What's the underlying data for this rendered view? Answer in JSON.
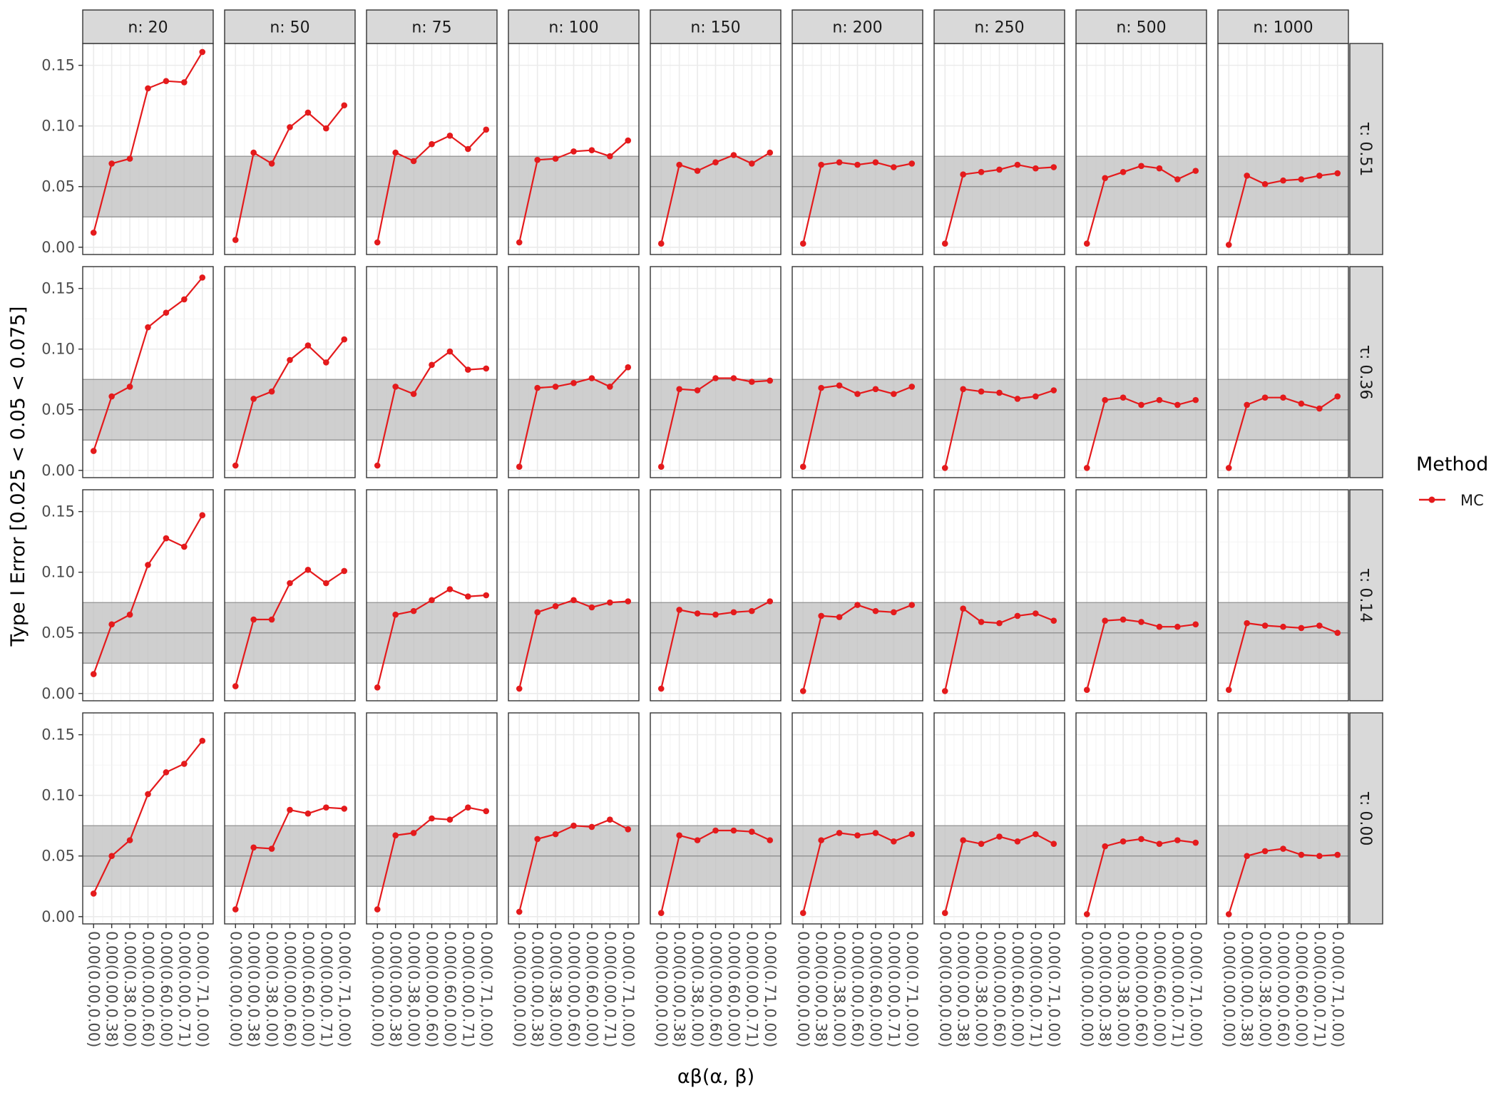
{
  "chart_data": {
    "type": "line",
    "facet_columns": [
      "n: 20",
      "n: 50",
      "n: 75",
      "n: 100",
      "n: 150",
      "n: 200",
      "n: 250",
      "n: 500",
      "n: 1000"
    ],
    "facet_rows": [
      "τ: 0.51",
      "τ: 0.36",
      "τ: 0.14",
      "τ: 0.00"
    ],
    "categories": [
      "0.00(0.00,0.00)",
      "0.00(0.00,0.38)",
      "0.00(0.38,0.00)",
      "0.00(0.00,0.60)",
      "0.00(0.60,0.00)",
      "0.00(0.00,0.71)",
      "0.00(0.71,0.00)"
    ],
    "xlabel": "αβ(α, β)",
    "ylabel": "Type I Error [0.025 < 0.05 < 0.075]",
    "ylim": [
      -0.006,
      0.168
    ],
    "y_ticks": [
      0.0,
      0.05,
      0.1,
      0.15
    ],
    "y_tick_labels": [
      "0.00",
      "0.05",
      "0.10",
      "0.15"
    ],
    "band": {
      "lower": 0.025,
      "mid": 0.05,
      "upper": 0.075
    },
    "grid": true,
    "legend": {
      "title": "Method",
      "position": "right",
      "entries": [
        {
          "name": "MC",
          "color": "#e41a1c"
        }
      ]
    },
    "series": [
      {
        "name": "MC",
        "color": "#e41a1c",
        "panels": [
          [
            [
              0.012,
              0.069,
              0.073,
              0.131,
              0.137,
              0.136,
              0.161
            ],
            [
              0.006,
              0.078,
              0.069,
              0.099,
              0.111,
              0.098,
              0.117
            ],
            [
              0.004,
              0.078,
              0.071,
              0.085,
              0.092,
              0.081,
              0.097
            ],
            [
              0.004,
              0.072,
              0.073,
              0.079,
              0.08,
              0.075,
              0.088
            ],
            [
              0.003,
              0.068,
              0.063,
              0.07,
              0.076,
              0.069,
              0.078
            ],
            [
              0.003,
              0.068,
              0.07,
              0.068,
              0.07,
              0.066,
              0.069
            ],
            [
              0.003,
              0.06,
              0.062,
              0.064,
              0.068,
              0.065,
              0.066
            ],
            [
              0.003,
              0.057,
              0.062,
              0.067,
              0.065,
              0.056,
              0.063
            ],
            [
              0.002,
              0.059,
              0.052,
              0.055,
              0.056,
              0.059,
              0.061
            ]
          ],
          [
            [
              0.016,
              0.061,
              0.069,
              0.118,
              0.13,
              0.141,
              0.159
            ],
            [
              0.004,
              0.059,
              0.065,
              0.091,
              0.103,
              0.089,
              0.108
            ],
            [
              0.004,
              0.069,
              0.063,
              0.087,
              0.098,
              0.083,
              0.084
            ],
            [
              0.003,
              0.068,
              0.069,
              0.072,
              0.076,
              0.069,
              0.085
            ],
            [
              0.003,
              0.067,
              0.066,
              0.076,
              0.076,
              0.073,
              0.074
            ],
            [
              0.003,
              0.068,
              0.07,
              0.063,
              0.067,
              0.063,
              0.069
            ],
            [
              0.002,
              0.067,
              0.065,
              0.064,
              0.059,
              0.061,
              0.066
            ],
            [
              0.002,
              0.058,
              0.06,
              0.054,
              0.058,
              0.054,
              0.058
            ],
            [
              0.002,
              0.054,
              0.06,
              0.06,
              0.055,
              0.051,
              0.061
            ]
          ],
          [
            [
              0.016,
              0.057,
              0.065,
              0.106,
              0.128,
              0.121,
              0.147
            ],
            [
              0.006,
              0.061,
              0.061,
              0.091,
              0.102,
              0.091,
              0.101
            ],
            [
              0.005,
              0.065,
              0.068,
              0.077,
              0.086,
              0.08,
              0.081
            ],
            [
              0.004,
              0.067,
              0.072,
              0.077,
              0.071,
              0.075,
              0.076
            ],
            [
              0.004,
              0.069,
              0.066,
              0.065,
              0.067,
              0.068,
              0.076
            ],
            [
              0.002,
              0.064,
              0.063,
              0.073,
              0.068,
              0.067,
              0.073
            ],
            [
              0.002,
              0.07,
              0.059,
              0.058,
              0.064,
              0.066,
              0.06
            ],
            [
              0.003,
              0.06,
              0.061,
              0.059,
              0.055,
              0.055,
              0.057
            ],
            [
              0.003,
              0.058,
              0.056,
              0.055,
              0.054,
              0.056,
              0.05
            ]
          ],
          [
            [
              0.019,
              0.05,
              0.063,
              0.101,
              0.119,
              0.126,
              0.145
            ],
            [
              0.006,
              0.057,
              0.056,
              0.088,
              0.085,
              0.09,
              0.089
            ],
            [
              0.006,
              0.067,
              0.069,
              0.081,
              0.08,
              0.09,
              0.087
            ],
            [
              0.004,
              0.064,
              0.068,
              0.075,
              0.074,
              0.08,
              0.072
            ],
            [
              0.003,
              0.067,
              0.063,
              0.071,
              0.071,
              0.07,
              0.063
            ],
            [
              0.003,
              0.063,
              0.069,
              0.067,
              0.069,
              0.062,
              0.068
            ],
            [
              0.003,
              0.063,
              0.06,
              0.066,
              0.062,
              0.068,
              0.06
            ],
            [
              0.002,
              0.058,
              0.062,
              0.064,
              0.06,
              0.063,
              0.061
            ],
            [
              0.002,
              0.05,
              0.054,
              0.056,
              0.051,
              0.05,
              0.051
            ]
          ]
        ]
      }
    ]
  }
}
